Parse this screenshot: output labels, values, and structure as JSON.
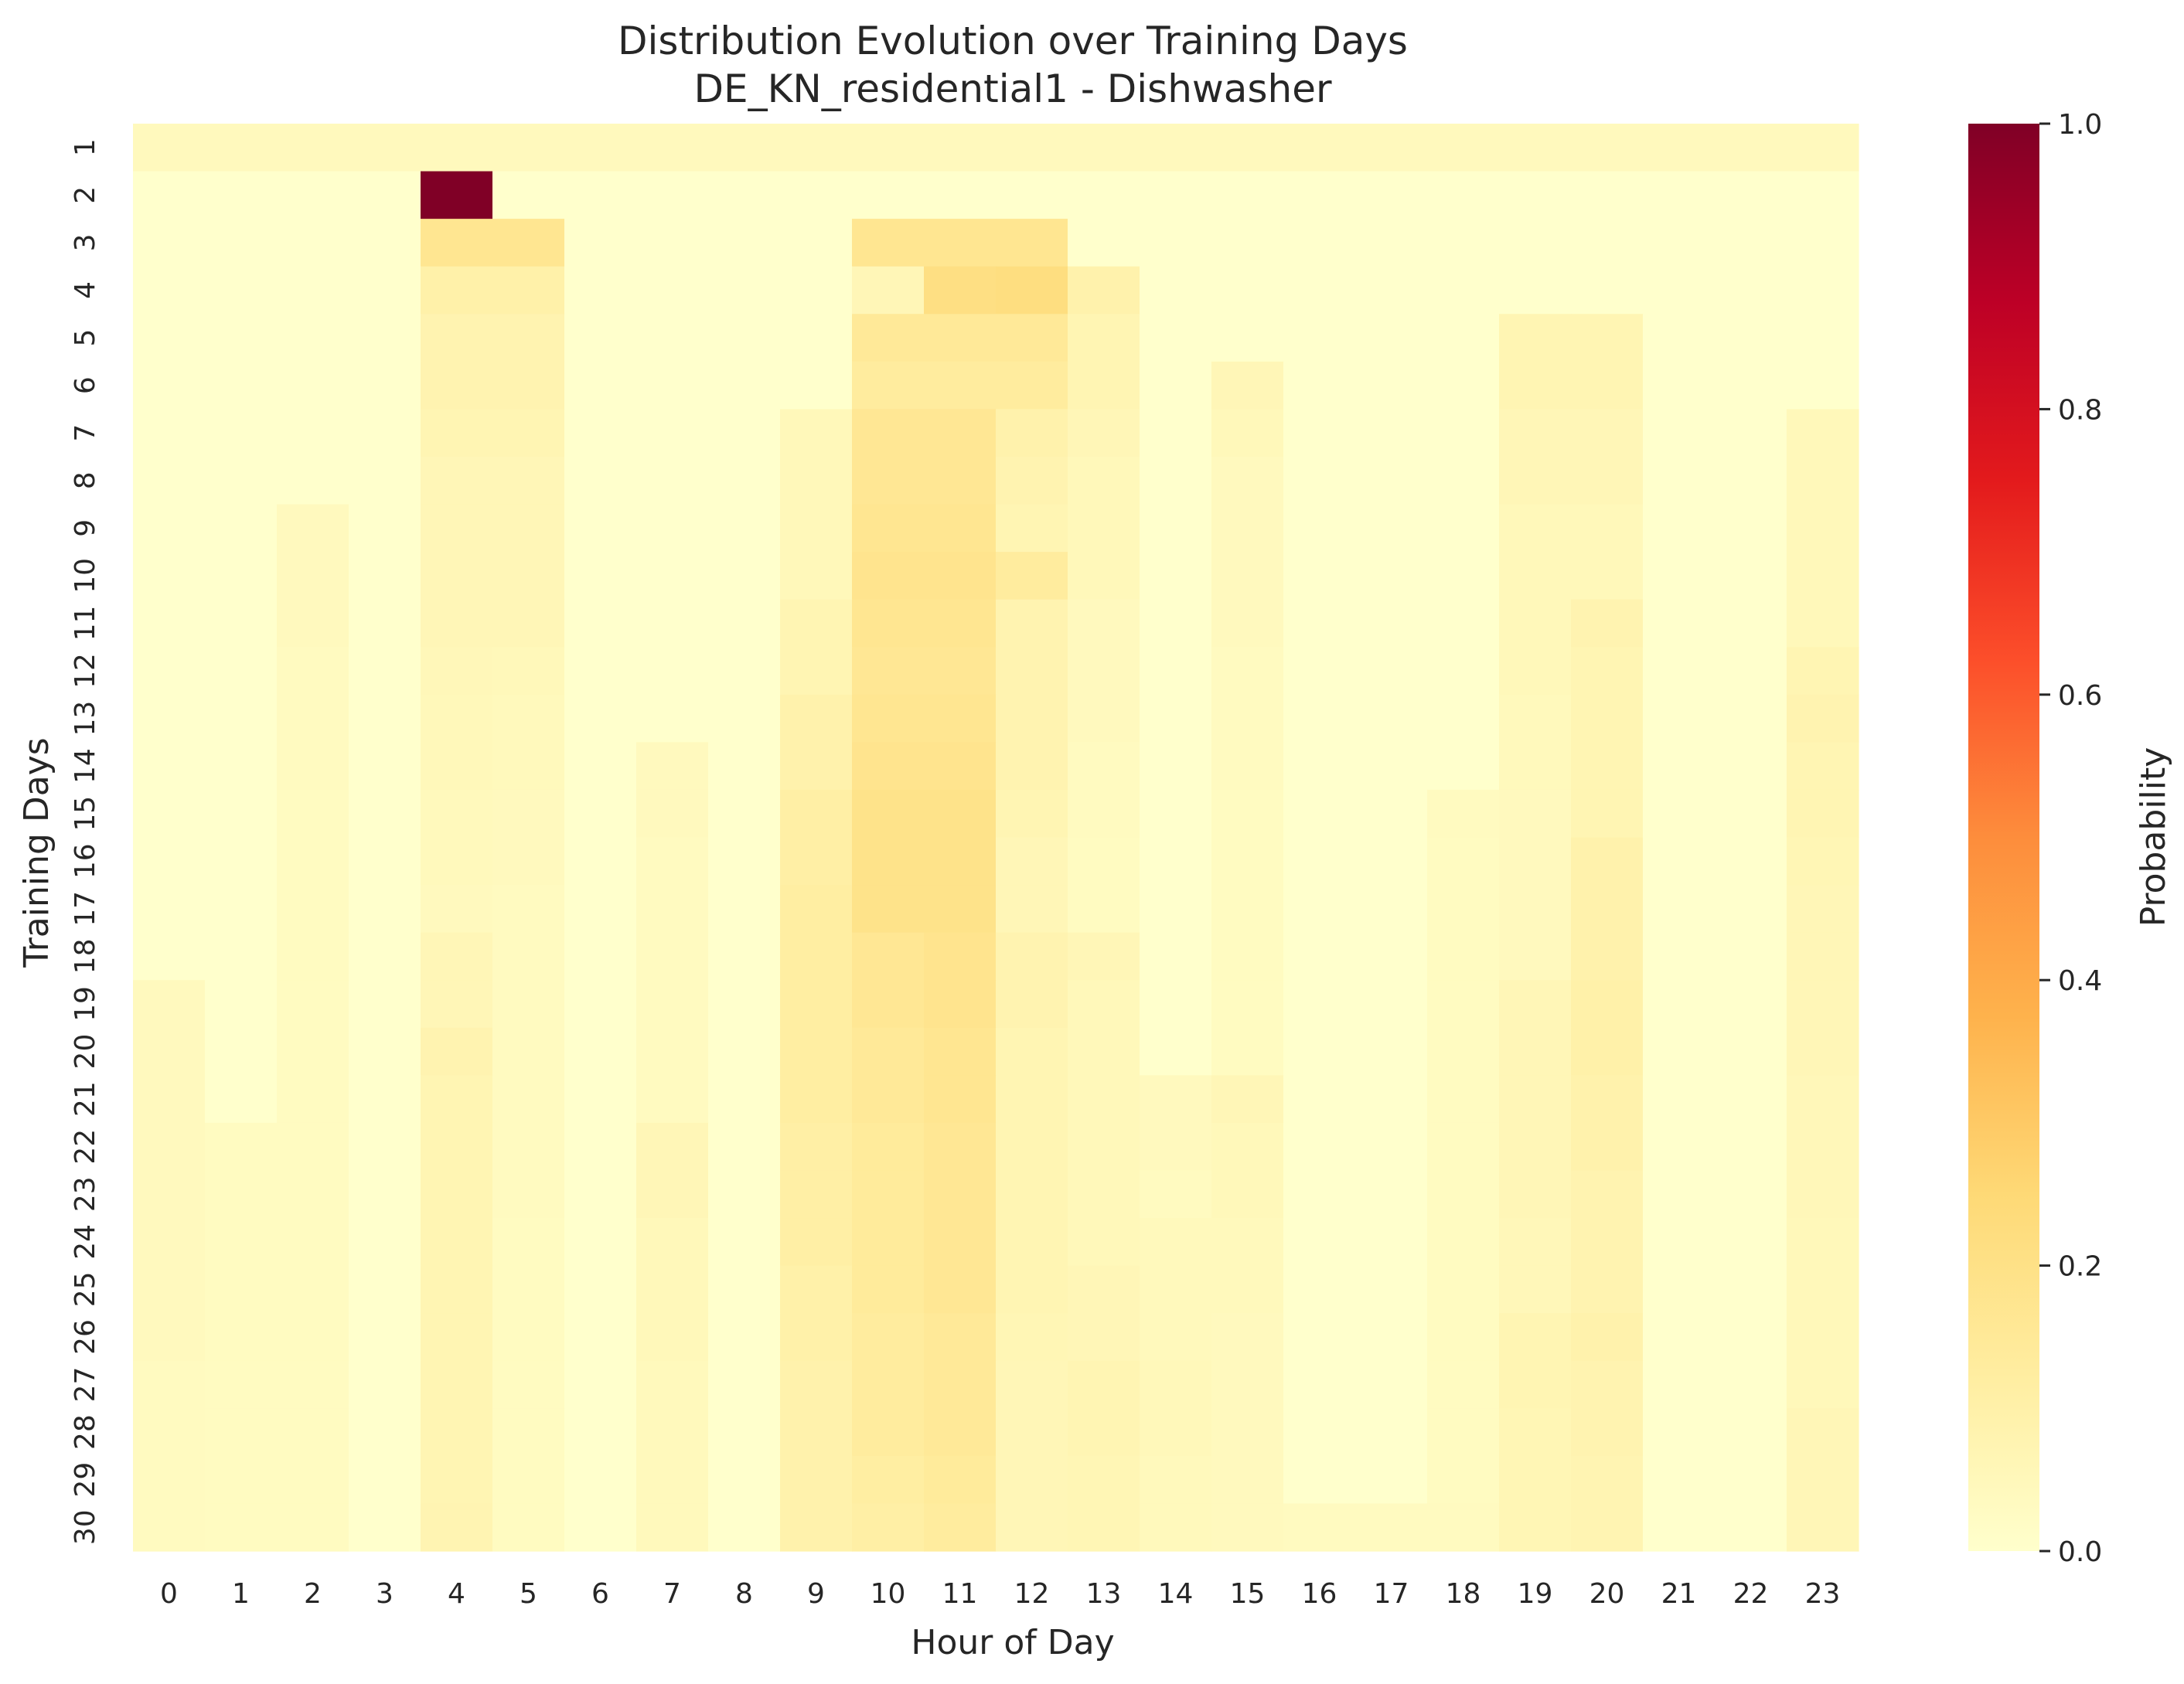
{
  "chart_data": {
    "type": "heatmap",
    "title": "Distribution Evolution over Training Days",
    "subtitle": "DE_KN_residential1 - Dishwasher",
    "xlabel": "Hour of Day",
    "ylabel": "Training Days",
    "x_categories": [
      "0",
      "1",
      "2",
      "3",
      "4",
      "5",
      "6",
      "7",
      "8",
      "9",
      "10",
      "11",
      "12",
      "13",
      "14",
      "15",
      "16",
      "17",
      "18",
      "19",
      "20",
      "21",
      "22",
      "23"
    ],
    "y_categories": [
      "1",
      "2",
      "3",
      "4",
      "5",
      "6",
      "7",
      "8",
      "9",
      "10",
      "11",
      "12",
      "13",
      "14",
      "15",
      "16",
      "17",
      "18",
      "19",
      "20",
      "21",
      "22",
      "23",
      "24",
      "25",
      "26",
      "27",
      "28",
      "29",
      "30"
    ],
    "colorbar": {
      "label": "Probability",
      "range": [
        0,
        1
      ],
      "ticks": [
        "0.0",
        "0.2",
        "0.4",
        "0.6",
        "0.8",
        "1.0"
      ],
      "colormap": "YlOrRd",
      "stops": [
        "#ffffcc",
        "#ffeda0",
        "#fed976",
        "#feb24c",
        "#fd8d3c",
        "#fc4e2a",
        "#e31a1c",
        "#bd0026",
        "#800026"
      ]
    },
    "values": [
      [
        0.042,
        0.042,
        0.042,
        0.042,
        0.042,
        0.042,
        0.042,
        0.042,
        0.042,
        0.042,
        0.042,
        0.042,
        0.042,
        0.042,
        0.042,
        0.042,
        0.042,
        0.042,
        0.042,
        0.042,
        0.042,
        0.042,
        0.042,
        0.042
      ],
      [
        0,
        0,
        0,
        0,
        1.0,
        0,
        0,
        0,
        0,
        0,
        0,
        0,
        0,
        0,
        0,
        0,
        0,
        0,
        0,
        0,
        0,
        0,
        0,
        0
      ],
      [
        0,
        0,
        0,
        0,
        0.17,
        0.17,
        0,
        0,
        0,
        0,
        0.17,
        0.17,
        0.17,
        0,
        0,
        0,
        0,
        0,
        0,
        0,
        0,
        0,
        0,
        0
      ],
      [
        0,
        0,
        0,
        0,
        0.1,
        0.1,
        0,
        0,
        0,
        0,
        0.06,
        0.21,
        0.22,
        0.09,
        0,
        0,
        0,
        0,
        0,
        0,
        0,
        0,
        0,
        0
      ],
      [
        0,
        0,
        0,
        0,
        0.08,
        0.08,
        0,
        0,
        0,
        0,
        0.15,
        0.15,
        0.15,
        0.07,
        0,
        0,
        0,
        0,
        0,
        0.07,
        0.07,
        0,
        0,
        0
      ],
      [
        0,
        0,
        0,
        0,
        0.08,
        0.08,
        0,
        0,
        0,
        0,
        0.13,
        0.13,
        0.13,
        0.07,
        0,
        0.06,
        0,
        0,
        0,
        0.07,
        0.07,
        0,
        0,
        0
      ],
      [
        0,
        0,
        0,
        0,
        0.07,
        0.07,
        0,
        0,
        0,
        0.05,
        0.16,
        0.16,
        0.09,
        0.06,
        0,
        0.05,
        0,
        0,
        0,
        0.06,
        0.06,
        0,
        0,
        0.05
      ],
      [
        0,
        0,
        0,
        0,
        0.06,
        0.06,
        0,
        0,
        0,
        0.05,
        0.16,
        0.16,
        0.08,
        0.05,
        0,
        0.04,
        0,
        0,
        0,
        0.06,
        0.06,
        0,
        0,
        0.05
      ],
      [
        0,
        0,
        0.04,
        0,
        0.06,
        0.06,
        0,
        0,
        0,
        0.05,
        0.17,
        0.17,
        0.07,
        0.05,
        0,
        0.04,
        0,
        0,
        0,
        0.05,
        0.05,
        0,
        0,
        0.05
      ],
      [
        0,
        0,
        0.04,
        0,
        0.06,
        0.06,
        0,
        0,
        0,
        0.05,
        0.18,
        0.18,
        0.13,
        0.05,
        0,
        0.04,
        0,
        0,
        0,
        0.05,
        0.05,
        0,
        0,
        0.05
      ],
      [
        0,
        0,
        0.04,
        0,
        0.06,
        0.06,
        0,
        0,
        0,
        0.07,
        0.17,
        0.17,
        0.08,
        0.04,
        0,
        0.04,
        0,
        0,
        0,
        0.05,
        0.08,
        0,
        0,
        0.05
      ],
      [
        0,
        0,
        0.035,
        0,
        0.055,
        0.05,
        0,
        0,
        0,
        0.07,
        0.16,
        0.16,
        0.08,
        0.04,
        0,
        0.035,
        0,
        0,
        0,
        0.05,
        0.07,
        0,
        0,
        0.07
      ],
      [
        0,
        0,
        0.035,
        0,
        0.05,
        0.045,
        0,
        0,
        0,
        0.09,
        0.17,
        0.17,
        0.08,
        0.04,
        0,
        0.035,
        0,
        0,
        0,
        0.045,
        0.07,
        0,
        0,
        0.08
      ],
      [
        0,
        0,
        0.035,
        0,
        0.05,
        0.045,
        0,
        0.04,
        0,
        0.09,
        0.18,
        0.18,
        0.08,
        0.035,
        0,
        0.035,
        0,
        0,
        0,
        0.045,
        0.07,
        0,
        0,
        0.07
      ],
      [
        0,
        0,
        0.03,
        0,
        0.045,
        0.04,
        0,
        0.04,
        0,
        0.11,
        0.19,
        0.19,
        0.07,
        0.035,
        0,
        0.03,
        0,
        0,
        0.035,
        0.04,
        0.07,
        0,
        0,
        0.07
      ],
      [
        0,
        0,
        0.03,
        0,
        0.045,
        0.04,
        0,
        0.035,
        0,
        0.11,
        0.19,
        0.19,
        0.06,
        0.03,
        0,
        0.03,
        0,
        0,
        0.03,
        0.04,
        0.09,
        0,
        0,
        0.065
      ],
      [
        0,
        0,
        0.03,
        0,
        0.04,
        0.035,
        0,
        0.035,
        0,
        0.12,
        0.19,
        0.19,
        0.06,
        0.03,
        0,
        0.03,
        0,
        0,
        0.03,
        0.04,
        0.09,
        0,
        0,
        0.06
      ],
      [
        0,
        0,
        0.03,
        0,
        0.06,
        0.035,
        0,
        0.035,
        0,
        0.12,
        0.16,
        0.18,
        0.08,
        0.06,
        0,
        0.03,
        0,
        0,
        0.03,
        0.04,
        0.09,
        0,
        0,
        0.06
      ],
      [
        0.04,
        0,
        0.03,
        0,
        0.06,
        0.035,
        0,
        0.035,
        0,
        0.12,
        0.16,
        0.18,
        0.08,
        0.05,
        0,
        0.03,
        0,
        0,
        0.03,
        0.06,
        0.1,
        0,
        0,
        0.06
      ],
      [
        0.04,
        0,
        0.03,
        0,
        0.08,
        0.035,
        0,
        0.035,
        0,
        0.12,
        0.15,
        0.17,
        0.07,
        0.05,
        0,
        0.03,
        0,
        0,
        0.03,
        0.06,
        0.1,
        0,
        0,
        0.06
      ],
      [
        0.04,
        0,
        0.03,
        0,
        0.07,
        0.035,
        0,
        0.035,
        0,
        0.12,
        0.15,
        0.17,
        0.07,
        0.05,
        0.04,
        0.06,
        0,
        0,
        0.03,
        0.06,
        0.09,
        0,
        0,
        0.055
      ],
      [
        0.04,
        0.03,
        0.03,
        0,
        0.07,
        0.035,
        0,
        0.06,
        0,
        0.11,
        0.14,
        0.16,
        0.07,
        0.05,
        0.04,
        0.05,
        0,
        0,
        0.03,
        0.06,
        0.09,
        0,
        0,
        0.055
      ],
      [
        0.04,
        0.03,
        0.03,
        0,
        0.07,
        0.035,
        0,
        0.06,
        0,
        0.11,
        0.14,
        0.16,
        0.07,
        0.05,
        0.035,
        0.05,
        0,
        0,
        0.03,
        0.06,
        0.08,
        0,
        0,
        0.055
      ],
      [
        0.04,
        0.03,
        0.03,
        0,
        0.07,
        0.03,
        0,
        0.05,
        0,
        0.11,
        0.14,
        0.16,
        0.07,
        0.05,
        0.045,
        0.045,
        0,
        0,
        0.03,
        0.055,
        0.08,
        0,
        0,
        0.05
      ],
      [
        0.04,
        0.03,
        0.03,
        0,
        0.07,
        0.03,
        0,
        0.05,
        0,
        0.1,
        0.14,
        0.16,
        0.07,
        0.06,
        0.045,
        0.045,
        0,
        0,
        0.03,
        0.055,
        0.08,
        0,
        0,
        0.05
      ],
      [
        0.04,
        0.03,
        0.03,
        0,
        0.07,
        0.03,
        0,
        0.05,
        0,
        0.1,
        0.13,
        0.15,
        0.065,
        0.06,
        0.045,
        0.04,
        0,
        0,
        0.03,
        0.07,
        0.09,
        0,
        0,
        0.05
      ],
      [
        0.035,
        0.03,
        0.03,
        0,
        0.07,
        0.03,
        0,
        0.045,
        0,
        0.09,
        0.13,
        0.15,
        0.06,
        0.07,
        0.05,
        0.04,
        0,
        0,
        0.03,
        0.07,
        0.08,
        0,
        0,
        0.05
      ],
      [
        0.035,
        0.03,
        0.03,
        0,
        0.07,
        0.03,
        0,
        0.045,
        0,
        0.09,
        0.13,
        0.15,
        0.06,
        0.07,
        0.05,
        0.04,
        0,
        0,
        0.03,
        0.065,
        0.08,
        0,
        0,
        0.06
      ],
      [
        0.035,
        0.03,
        0.03,
        0,
        0.07,
        0.03,
        0,
        0.045,
        0,
        0.09,
        0.12,
        0.14,
        0.06,
        0.065,
        0.045,
        0.04,
        0,
        0,
        0.03,
        0.065,
        0.075,
        0,
        0,
        0.06
      ],
      [
        0.035,
        0.03,
        0.03,
        0,
        0.075,
        0.03,
        0,
        0.045,
        0,
        0.09,
        0.11,
        0.13,
        0.06,
        0.065,
        0.045,
        0.04,
        0.035,
        0.035,
        0.035,
        0.065,
        0.075,
        0,
        0,
        0.06
      ]
    ]
  }
}
